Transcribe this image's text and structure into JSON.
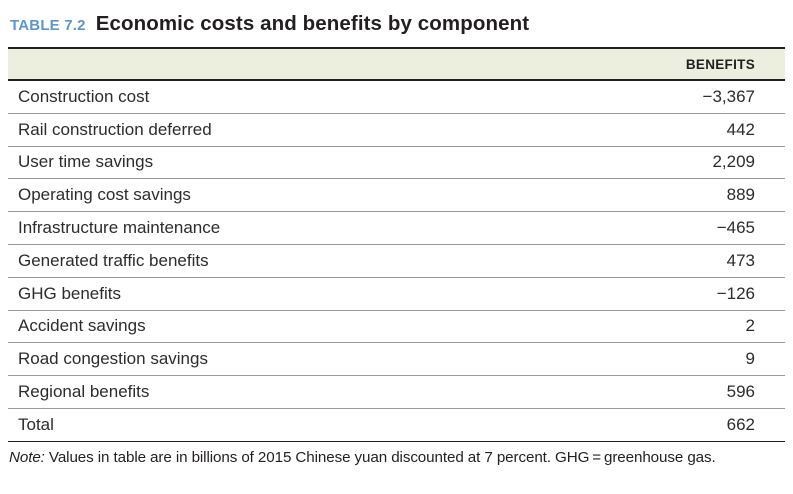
{
  "title": {
    "label": "TABLE 7.2",
    "text": "Economic costs and benefits by component"
  },
  "table": {
    "column_header": "BENEFITS",
    "rows": [
      {
        "label": "Construction cost",
        "value": "−3,367"
      },
      {
        "label": "Rail construction deferred",
        "value": "442"
      },
      {
        "label": "User time savings",
        "value": "2,209"
      },
      {
        "label": "Operating cost savings",
        "value": "889"
      },
      {
        "label": "Infrastructure maintenance",
        "value": "−465"
      },
      {
        "label": "Generated traffic benefits",
        "value": "473"
      },
      {
        "label": "GHG benefits",
        "value": "−126"
      },
      {
        "label": "Accident savings",
        "value": "2"
      },
      {
        "label": "Road congestion savings",
        "value": "9"
      },
      {
        "label": "Regional benefits",
        "value": "596"
      },
      {
        "label": "Total",
        "value": "662"
      }
    ]
  },
  "note": {
    "prefix": "Note:",
    "text": " Values in table are in billions of 2015 Chinese yuan discounted at 7 percent. GHG = greenhouse gas."
  },
  "colors": {
    "accent_blue": "#5e96cb",
    "header_band": "#ecefdf",
    "text_dark": "#231f20",
    "row_text": "#2e2b2c",
    "row_divider": "#9b9b9b"
  }
}
